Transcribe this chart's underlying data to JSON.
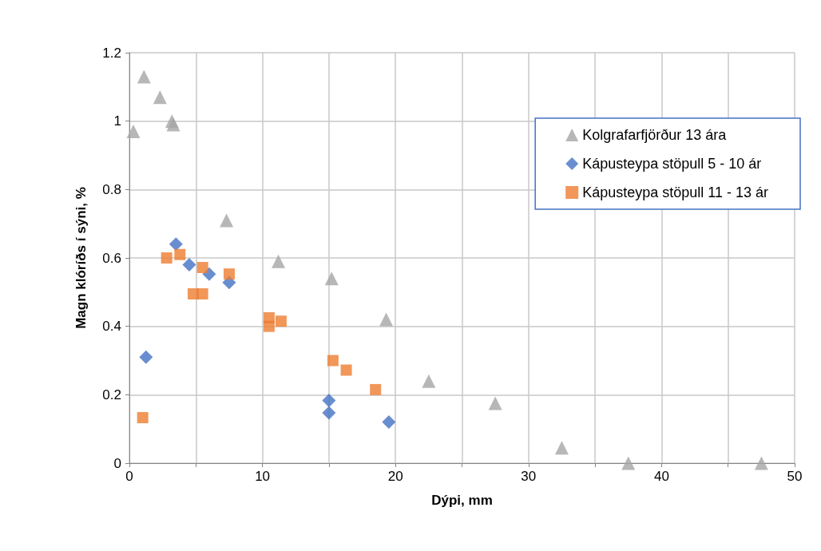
{
  "chart_data": {
    "type": "scatter",
    "xlabel": "Dýpi, mm",
    "ylabel": "Magn klóríðs í sýni, %",
    "xlim": [
      0,
      50
    ],
    "ylim": [
      0,
      1.2
    ],
    "xticks": [
      0,
      {
        "value": 5,
        "label": null
      },
      10,
      {
        "value": 15,
        "label": null
      },
      20,
      {
        "value": 25,
        "label": null
      },
      30,
      {
        "value": 35,
        "label": null
      },
      40,
      {
        "value": 45,
        "label": null
      },
      50
    ],
    "yticks": [
      0,
      0.2,
      0.4,
      0.6,
      0.8,
      1,
      1.2
    ],
    "grid": true,
    "legend": "top right",
    "series": [
      {
        "name": "Kolgrafarfjörður 13 ára",
        "color": "#a5a5a5",
        "marker": "triangle",
        "x": [
          0.3,
          1.1,
          2.3,
          3.2,
          3.3,
          7.3,
          11.2,
          15.2,
          19.3,
          22.5,
          27.5,
          32.5,
          37.5,
          47.5
        ],
        "values": [
          0.97,
          1.13,
          1.07,
          1.0,
          0.99,
          0.71,
          0.59,
          0.54,
          0.42,
          0.24,
          0.175,
          0.045,
          0,
          0
        ]
      },
      {
        "name": "Kápusteypa stöpull 5 - 10 ár",
        "color": "#4472c4",
        "marker": "diamond",
        "x": [
          1.25,
          3.5,
          4.5,
          6.0,
          7.5,
          15.0,
          15.0,
          19.5
        ],
        "values": [
          0.31,
          0.64,
          0.58,
          0.553,
          0.528,
          0.183,
          0.147,
          0.12
        ]
      },
      {
        "name": "Kápusteypa stöpull 11 - 13 ár",
        "color": "#ed7d31",
        "marker": "square",
        "x": [
          1.0,
          2.8,
          3.8,
          4.8,
          5.5,
          5.5,
          7.5,
          10.5,
          10.5,
          11.4,
          15.3,
          16.3,
          18.5
        ],
        "values": [
          0.133,
          0.6,
          0.61,
          0.495,
          0.495,
          0.572,
          0.553,
          0.425,
          0.4,
          0.415,
          0.3,
          0.272,
          0.215
        ]
      }
    ]
  }
}
